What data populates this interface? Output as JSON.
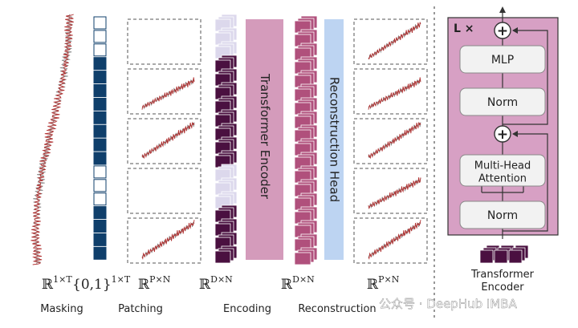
{
  "mask_pattern": [
    0,
    0,
    0,
    1,
    1,
    1,
    1,
    1,
    1,
    1,
    1,
    0,
    0,
    0,
    1,
    1,
    1,
    1
  ],
  "encoding_pattern": [
    0,
    0,
    0,
    1,
    1,
    1,
    1,
    1,
    1,
    1,
    1,
    0,
    0,
    0,
    1,
    1,
    1,
    1
  ],
  "recon_count": 18,
  "patches": {
    "visible_in_patching": [
      false,
      true,
      true,
      false,
      true
    ],
    "visible_in_output": [
      true,
      true,
      true,
      true,
      true
    ]
  },
  "blocks": {
    "transformer_encoder": "Transformer Encoder",
    "reconstruction_head": "Reconstruction Head"
  },
  "dims": {
    "masking": "ℝ",
    "masking_sup": "1×T",
    "patching_set": "{0,1}",
    "patching_set_sup": "1×T",
    "patching": "ℝ",
    "patching_sup": "P×N",
    "encoding": "ℝ",
    "encoding_sup": "D×N",
    "reconstruction": "ℝ",
    "reconstruction_sup": "D×N",
    "output": "ℝ",
    "output_sup": "P×N"
  },
  "captions": {
    "masking": "Masking",
    "patching": "Patching",
    "encoding": "Encoding",
    "reconstruction": "Reconstruction"
  },
  "encoder_detail": {
    "repeat": "L ×",
    "add_symbol": "+",
    "mlp": "MLP",
    "norm_top": "Norm",
    "attention_line1": "Multi-Head",
    "attention_line2": "Attention",
    "norm_bottom": "Norm",
    "caption_line1": "Transformer",
    "caption_line2": "Encoder"
  },
  "watermark": "公众号 · DeepHub IMBA",
  "colors": {
    "mask_blue": "#0f3f6b",
    "enc_dark": "#4a1040",
    "enc_light": "#dcd8ec",
    "recon_pink": "#b0507c",
    "transformer_block": "#d49bbb",
    "recon_head_block": "#bdd4f2",
    "encoder_panel": "#d7a0c4",
    "signal_red": "#b03030",
    "signal_gray": "#888888"
  }
}
